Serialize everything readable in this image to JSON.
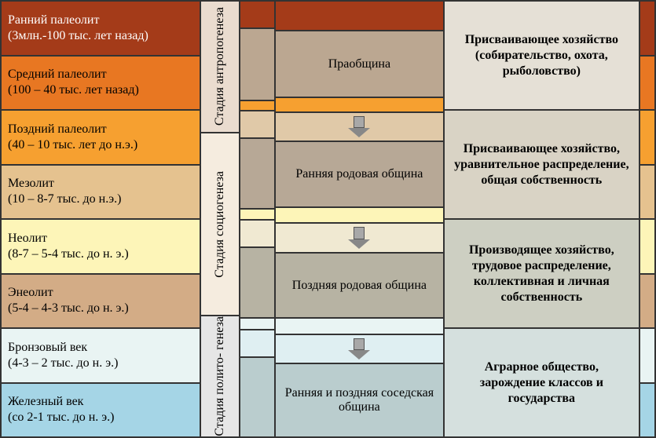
{
  "periods": [
    {
      "title": "Ранний палеолит",
      "dates": "(3млн.-100 тыс. лет назад)",
      "bg": "#a43b19",
      "fg": "#ffffff"
    },
    {
      "title": "Средний палеолит",
      "dates": "(100 – 40 тыс. лет назад)",
      "bg": "#e87722",
      "fg": "#000000"
    },
    {
      "title": "Поздний палеолит",
      "dates": "(40 – 10 тыс. лет до н.э.)",
      "bg": "#f6a030",
      "fg": "#000000"
    },
    {
      "title": "Мезолит",
      "dates": "(10 – 8-7 тыс. до н.э.)",
      "bg": "#e5c28f",
      "fg": "#000000"
    },
    {
      "title": "Неолит",
      "dates": "(8-7 – 5-4 тыс. до н. э.)",
      "bg": "#fdf5b8",
      "fg": "#000000"
    },
    {
      "title": "Энеолит",
      "dates": "(5-4 – 4-3 тыс. до н. э.)",
      "bg": "#d3ac86",
      "fg": "#000000"
    },
    {
      "title": "Бронзовый век",
      "dates": "(4-3 – 2 тыс. до н. э.)",
      "bg": "#e9f4f3",
      "fg": "#000000"
    },
    {
      "title": "Железный век",
      "dates": "(со 2-1 тыс. до н. э.)",
      "bg": "#a5d5e6",
      "fg": "#000000"
    }
  ],
  "stages": [
    {
      "label": "Стадия антропогенеза",
      "rows": 2.5,
      "bg": "#eadccf"
    },
    {
      "label": "Стадия социогенеза",
      "rows": 3.5,
      "bg": "#f5ecdf"
    },
    {
      "label": "Стадия полито- генеза",
      "rows": 2,
      "bg": "#e6e6e6"
    }
  ],
  "mid_segments": [
    {
      "rows": 0.5,
      "bg": "#a43b19"
    },
    {
      "rows": 1.35,
      "bg": "#bba791"
    },
    {
      "rows": 0.15,
      "bg": "#f6a030"
    },
    {
      "rows": 0.5,
      "bg": "#e0c9a8"
    },
    {
      "rows": 1.32,
      "bg": "#b7a896"
    },
    {
      "rows": 0.18,
      "bg": "#fdf5b8"
    },
    {
      "rows": 0.5,
      "bg": "#f0e9d2"
    },
    {
      "rows": 1.32,
      "bg": "#b7b3a3"
    },
    {
      "rows": 0.18,
      "bg": "#e9f4f3"
    },
    {
      "rows": 0.5,
      "bg": "#dfeff2"
    },
    {
      "rows": 1.5,
      "bg": "#bacdce"
    }
  ],
  "communities": [
    {
      "type": "gap",
      "rows": 0.5,
      "bg": "#a43b19"
    },
    {
      "type": "box",
      "rows": 1.35,
      "bg": "#bba791",
      "label": "Праобщина"
    },
    {
      "type": "gap",
      "rows": 0.15,
      "bg": "#f6a030"
    },
    {
      "type": "arrow",
      "rows": 0.5,
      "bg": "#e0c9a8"
    },
    {
      "type": "box",
      "rows": 1.32,
      "bg": "#b7a896",
      "label": "Ранняя родовая община"
    },
    {
      "type": "gap",
      "rows": 0.18,
      "bg": "#fdf5b8"
    },
    {
      "type": "arrow",
      "rows": 0.5,
      "bg": "#f0e9d2"
    },
    {
      "type": "box",
      "rows": 1.32,
      "bg": "#b7b3a3",
      "label": "Поздняя родовая община"
    },
    {
      "type": "gap",
      "rows": 0.18,
      "bg": "#e9f4f3"
    },
    {
      "type": "arrow",
      "rows": 0.5,
      "bg": "#dfeff2"
    },
    {
      "type": "box",
      "rows": 1.5,
      "bg": "#bacdce",
      "label": "Ранняя и поздняя соседская община"
    }
  ],
  "economy": [
    {
      "rows": 2,
      "bg": "#e5e0d6",
      "label": "Присваивающее хозяйство (собирательство, охота, рыболовство)"
    },
    {
      "rows": 2,
      "bg": "#d9d3c5",
      "label": "Присваивающее хозяйство, уравнительное распределение, общая собственность"
    },
    {
      "rows": 2,
      "bg": "#cdcfc2",
      "label": "Производящее хозяйство, трудовое распределение, коллективная и личная собственность"
    },
    {
      "rows": 2,
      "bg": "#d5e0de",
      "label": "Аграрное общество, зарождение классов и государства"
    }
  ],
  "edge": [
    {
      "bg": "#a43b19"
    },
    {
      "bg": "#e87722"
    },
    {
      "bg": "#f6a030"
    },
    {
      "bg": "#e5c28f"
    },
    {
      "bg": "#fdf5b8"
    },
    {
      "bg": "#d3ac86"
    },
    {
      "bg": "#e9f4f3"
    },
    {
      "bg": "#a5d5e6"
    }
  ],
  "border_color": "#333333"
}
